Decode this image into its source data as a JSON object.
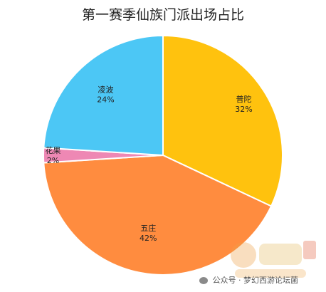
{
  "chart_data": {
    "type": "pie",
    "title": "第一赛季仙族门派出场占比",
    "slices": [
      {
        "name": "普陀",
        "value": 32,
        "label": "32%",
        "color": "#FFC20E"
      },
      {
        "name": "五庄",
        "value": 42,
        "label": "42%",
        "color": "#FF8C3F"
      },
      {
        "name": "花果",
        "value": 2,
        "label": "2%",
        "color": "#EE88B4"
      },
      {
        "name": "凌波",
        "value": 24,
        "label": "24%",
        "color": "#4CC7F5"
      }
    ]
  },
  "footer": {
    "text": "公众号 · 梦幻西游论坛菌"
  }
}
